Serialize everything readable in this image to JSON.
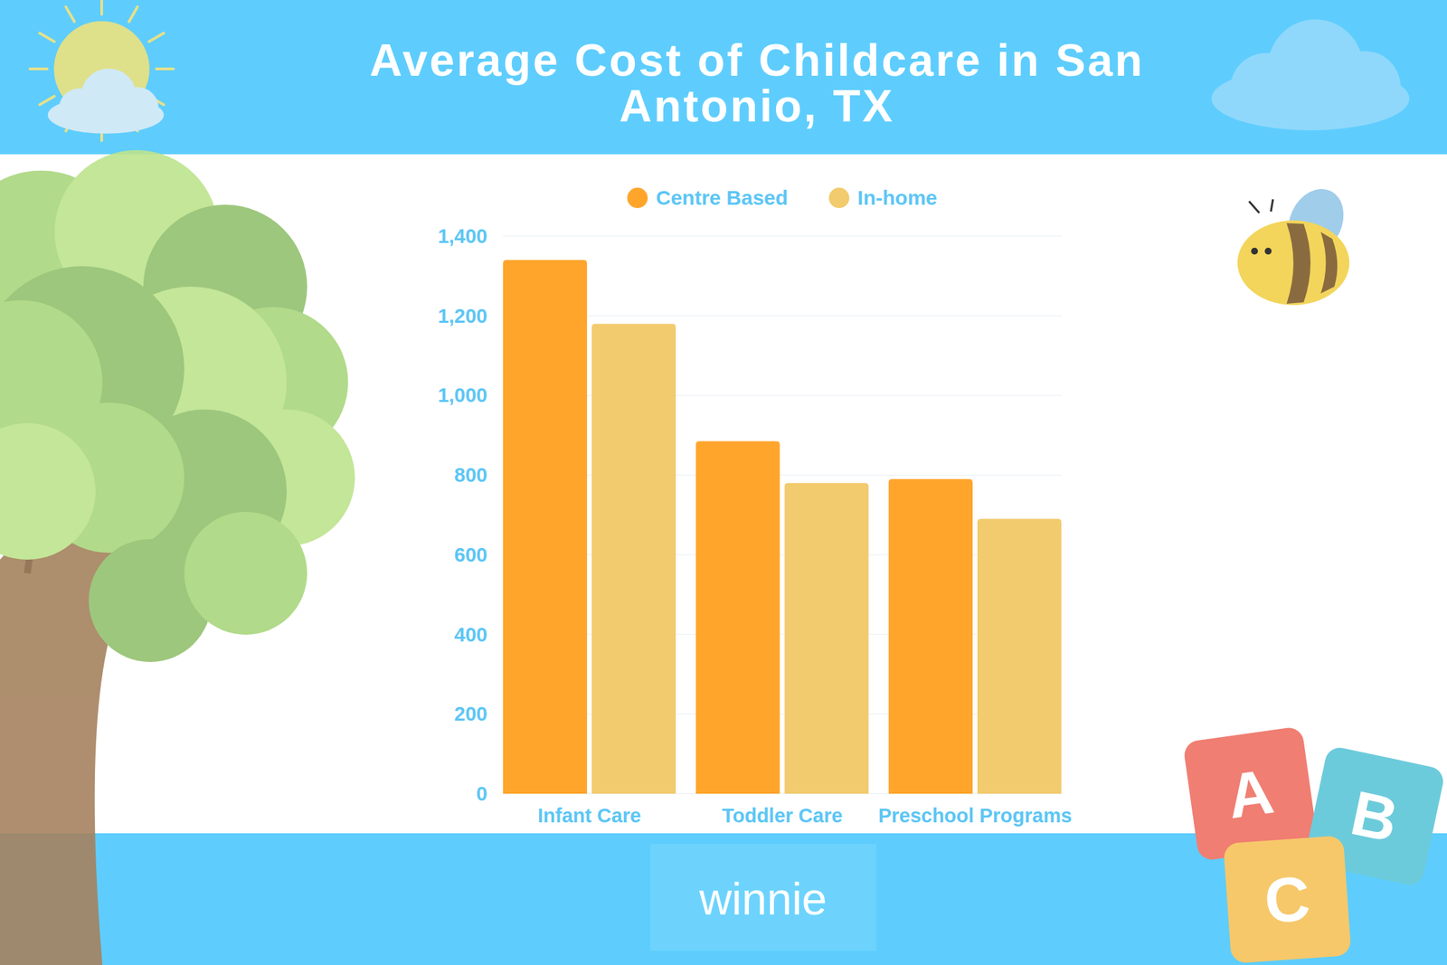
{
  "chart_data": {
    "type": "bar",
    "title": "Average Cost of Childcare in San Antonio, TX",
    "categories": [
      "Infant Care",
      "Toddler Care",
      "Preschool Programs"
    ],
    "series": [
      {
        "name": "Centre Based",
        "color": "#ffa52c",
        "values": [
          1340,
          885,
          790
        ]
      },
      {
        "name": "In-home",
        "color": "#f2cb6e",
        "values": [
          1180,
          780,
          690
        ]
      }
    ],
    "ylim": [
      0,
      1400
    ],
    "yticks": [
      0,
      200,
      400,
      600,
      800,
      {
        "value": 1000,
        "label": "1,000"
      },
      {
        "value": 1200,
        "label": "1,200"
      },
      {
        "value": 1400,
        "label": "1,400"
      }
    ],
    "grid": true,
    "legend": "top"
  },
  "footer": {
    "logo": "winnie"
  },
  "decorations": {
    "blocks": [
      "A",
      "B",
      "C"
    ]
  }
}
